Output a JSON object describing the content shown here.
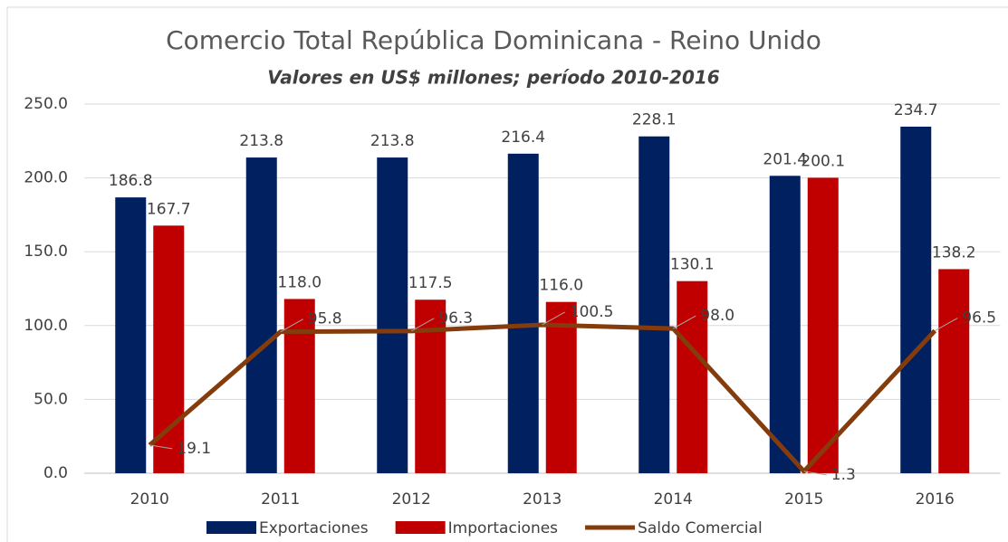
{
  "chart_data": {
    "type": "bar_line",
    "title": "Comercio Total  República Dominicana - Reino Unido",
    "subtitle": "Valores en US$ millones; período 2010-2016",
    "categories": [
      "2010",
      "2011",
      "2012",
      "2013",
      "2014",
      "2015",
      "2016"
    ],
    "series": [
      {
        "name": "Exportaciones",
        "color": "#002060",
        "kind": "bar",
        "values": [
          186.8,
          213.8,
          213.8,
          216.4,
          228.1,
          201.4,
          234.7
        ],
        "value_labels": [
          "186.8",
          "213.8",
          "213.8",
          "216.4",
          "228.1",
          "201.4",
          "234.7"
        ]
      },
      {
        "name": "Importaciones",
        "color": "#c00000",
        "kind": "bar",
        "values": [
          167.7,
          118.0,
          117.5,
          116.0,
          130.1,
          200.1,
          138.2
        ],
        "value_labels": [
          "167.7",
          "118.0",
          "117.5",
          "116.0",
          "130.1",
          "200.1",
          "138.2"
        ]
      },
      {
        "name": "Saldo Comercial",
        "color": "#843c0c",
        "kind": "line",
        "values": [
          19.1,
          95.8,
          96.3,
          100.5,
          98.0,
          1.3,
          96.5
        ],
        "value_labels": [
          "19.1",
          "95.8",
          "96.3",
          "100.5",
          "98.0",
          "1.3",
          "96.5"
        ]
      }
    ],
    "ylim": [
      0,
      250
    ],
    "yticks": [
      {
        "value": 0,
        "label": "0.0"
      },
      {
        "value": 50,
        "label": "50.0"
      },
      {
        "value": 100,
        "label": "100.0"
      },
      {
        "value": 150,
        "label": "150.0"
      },
      {
        "value": 200,
        "label": "200.0"
      },
      {
        "value": 250,
        "label": "250.0"
      }
    ],
    "legend": "bottom"
  }
}
